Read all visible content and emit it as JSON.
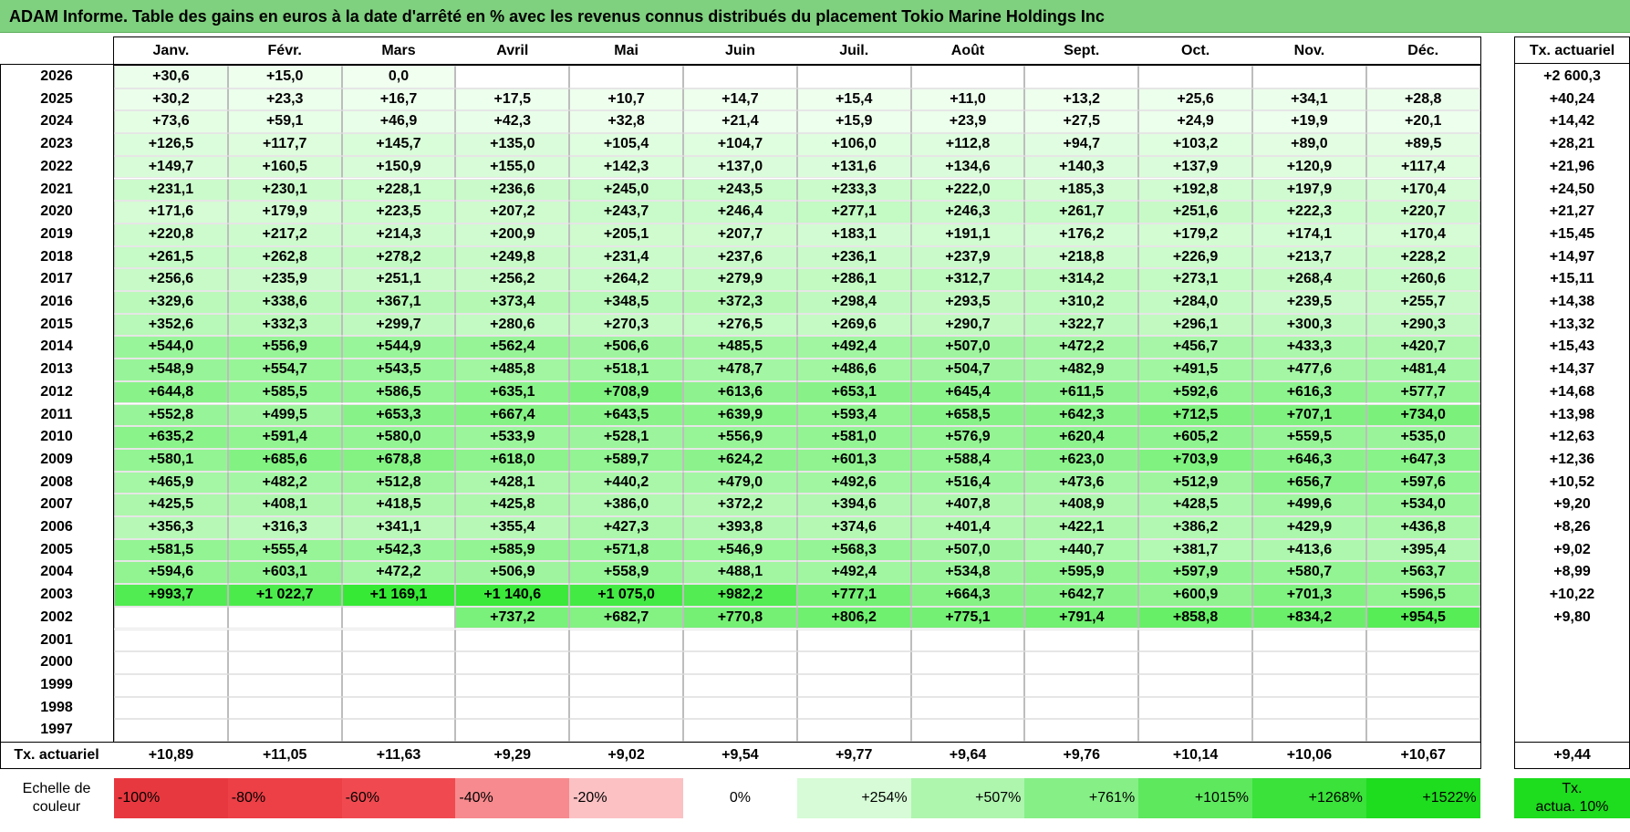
{
  "title": "ADAM Informe. Table des gains en euros à la date d'arrêté en % avec les revenus connus distribués du placement Tokio Marine Holdings Inc",
  "months": [
    "Janv.",
    "Févr.",
    "Mars",
    "Avril",
    "Mai",
    "Juin",
    "Juil.",
    "Août",
    "Sept.",
    "Oct.",
    "Nov.",
    "Déc."
  ],
  "tx_header": "Tx. actuariel",
  "rows": [
    {
      "year": "2026",
      "values": [
        "+30,6",
        "+15,0",
        "0,0",
        "",
        "",
        "",
        "",
        "",
        "",
        "",
        "",
        ""
      ],
      "tx": "+2 600,3"
    },
    {
      "year": "2025",
      "values": [
        "+30,2",
        "+23,3",
        "+16,7",
        "+17,5",
        "+10,7",
        "+14,7",
        "+15,4",
        "+11,0",
        "+13,2",
        "+25,6",
        "+34,1",
        "+28,8"
      ],
      "tx": "+40,24"
    },
    {
      "year": "2024",
      "values": [
        "+73,6",
        "+59,1",
        "+46,9",
        "+42,3",
        "+32,8",
        "+21,4",
        "+15,9",
        "+23,9",
        "+27,5",
        "+24,9",
        "+19,9",
        "+20,1"
      ],
      "tx": "+14,42"
    },
    {
      "year": "2023",
      "values": [
        "+126,5",
        "+117,7",
        "+145,7",
        "+135,0",
        "+105,4",
        "+104,7",
        "+106,0",
        "+112,8",
        "+94,7",
        "+103,2",
        "+89,0",
        "+89,5"
      ],
      "tx": "+28,21"
    },
    {
      "year": "2022",
      "values": [
        "+149,7",
        "+160,5",
        "+150,9",
        "+155,0",
        "+142,3",
        "+137,0",
        "+131,6",
        "+134,6",
        "+140,3",
        "+137,9",
        "+120,9",
        "+117,4"
      ],
      "tx": "+21,96"
    },
    {
      "year": "2021",
      "values": [
        "+231,1",
        "+230,1",
        "+228,1",
        "+236,6",
        "+245,0",
        "+243,5",
        "+233,3",
        "+222,0",
        "+185,3",
        "+192,8",
        "+197,9",
        "+170,4"
      ],
      "tx": "+24,50"
    },
    {
      "year": "2020",
      "values": [
        "+171,6",
        "+179,9",
        "+223,5",
        "+207,2",
        "+243,7",
        "+246,4",
        "+277,1",
        "+246,3",
        "+261,7",
        "+251,6",
        "+222,3",
        "+220,7"
      ],
      "tx": "+21,27"
    },
    {
      "year": "2019",
      "values": [
        "+220,8",
        "+217,2",
        "+214,3",
        "+200,9",
        "+205,1",
        "+207,7",
        "+183,1",
        "+191,1",
        "+176,2",
        "+179,2",
        "+174,1",
        "+170,4"
      ],
      "tx": "+15,45"
    },
    {
      "year": "2018",
      "values": [
        "+261,5",
        "+262,8",
        "+278,2",
        "+249,8",
        "+231,4",
        "+237,6",
        "+236,1",
        "+237,9",
        "+218,8",
        "+226,9",
        "+213,7",
        "+228,2"
      ],
      "tx": "+14,97"
    },
    {
      "year": "2017",
      "values": [
        "+256,6",
        "+235,9",
        "+251,1",
        "+256,2",
        "+264,2",
        "+279,9",
        "+286,1",
        "+312,7",
        "+314,2",
        "+273,1",
        "+268,4",
        "+260,6"
      ],
      "tx": "+15,11"
    },
    {
      "year": "2016",
      "values": [
        "+329,6",
        "+338,6",
        "+367,1",
        "+373,4",
        "+348,5",
        "+372,3",
        "+298,4",
        "+293,5",
        "+310,2",
        "+284,0",
        "+239,5",
        "+255,7"
      ],
      "tx": "+14,38"
    },
    {
      "year": "2015",
      "values": [
        "+352,6",
        "+332,3",
        "+299,7",
        "+280,6",
        "+270,3",
        "+276,5",
        "+269,6",
        "+290,7",
        "+322,7",
        "+296,1",
        "+300,3",
        "+290,3"
      ],
      "tx": "+13,32"
    },
    {
      "year": "2014",
      "values": [
        "+544,0",
        "+556,9",
        "+544,9",
        "+562,4",
        "+506,6",
        "+485,5",
        "+492,4",
        "+507,0",
        "+472,2",
        "+456,7",
        "+433,3",
        "+420,7"
      ],
      "tx": "+15,43"
    },
    {
      "year": "2013",
      "values": [
        "+548,9",
        "+554,7",
        "+543,5",
        "+485,8",
        "+518,1",
        "+478,7",
        "+486,6",
        "+504,7",
        "+482,9",
        "+491,5",
        "+477,6",
        "+481,4"
      ],
      "tx": "+14,37"
    },
    {
      "year": "2012",
      "values": [
        "+644,8",
        "+585,5",
        "+586,5",
        "+635,1",
        "+708,9",
        "+613,6",
        "+653,1",
        "+645,4",
        "+611,5",
        "+592,6",
        "+616,3",
        "+577,7"
      ],
      "tx": "+14,68"
    },
    {
      "year": "2011",
      "values": [
        "+552,8",
        "+499,5",
        "+653,3",
        "+667,4",
        "+643,5",
        "+639,9",
        "+593,4",
        "+658,5",
        "+642,3",
        "+712,5",
        "+707,1",
        "+734,0"
      ],
      "tx": "+13,98"
    },
    {
      "year": "2010",
      "values": [
        "+635,2",
        "+591,4",
        "+580,0",
        "+533,9",
        "+528,1",
        "+556,9",
        "+581,0",
        "+576,9",
        "+620,4",
        "+605,2",
        "+559,5",
        "+535,0"
      ],
      "tx": "+12,63"
    },
    {
      "year": "2009",
      "values": [
        "+580,1",
        "+685,6",
        "+678,8",
        "+618,0",
        "+589,7",
        "+624,2",
        "+601,3",
        "+588,4",
        "+623,0",
        "+703,9",
        "+646,3",
        "+647,3"
      ],
      "tx": "+12,36"
    },
    {
      "year": "2008",
      "values": [
        "+465,9",
        "+482,2",
        "+512,8",
        "+428,1",
        "+440,2",
        "+479,0",
        "+492,6",
        "+516,4",
        "+473,6",
        "+512,9",
        "+656,7",
        "+597,6"
      ],
      "tx": "+10,52"
    },
    {
      "year": "2007",
      "values": [
        "+425,5",
        "+408,1",
        "+418,5",
        "+425,8",
        "+386,0",
        "+372,2",
        "+394,6",
        "+407,8",
        "+408,9",
        "+428,5",
        "+499,6",
        "+534,0"
      ],
      "tx": "+9,20"
    },
    {
      "year": "2006",
      "values": [
        "+356,3",
        "+316,3",
        "+341,1",
        "+355,4",
        "+427,3",
        "+393,8",
        "+374,6",
        "+401,4",
        "+422,1",
        "+386,2",
        "+429,9",
        "+436,8"
      ],
      "tx": "+8,26"
    },
    {
      "year": "2005",
      "values": [
        "+581,5",
        "+555,4",
        "+542,3",
        "+585,9",
        "+571,8",
        "+546,9",
        "+568,3",
        "+507,0",
        "+440,7",
        "+381,7",
        "+413,6",
        "+395,4"
      ],
      "tx": "+9,02"
    },
    {
      "year": "2004",
      "values": [
        "+594,6",
        "+603,1",
        "+472,2",
        "+506,9",
        "+558,9",
        "+488,1",
        "+492,4",
        "+534,8",
        "+595,9",
        "+597,9",
        "+580,7",
        "+563,7"
      ],
      "tx": "+8,99"
    },
    {
      "year": "2003",
      "values": [
        "+993,7",
        "+1 022,7",
        "+1 169,1",
        "+1 140,6",
        "+1 075,0",
        "+982,2",
        "+777,1",
        "+664,3",
        "+642,7",
        "+600,9",
        "+701,3",
        "+596,5"
      ],
      "tx": "+10,22"
    },
    {
      "year": "2002",
      "values": [
        "",
        "",
        "",
        "+737,2",
        "+682,7",
        "+770,8",
        "+806,2",
        "+775,1",
        "+791,4",
        "+858,8",
        "+834,2",
        "+954,5"
      ],
      "tx": "+9,80"
    },
    {
      "year": "2001",
      "values": [
        "",
        "",
        "",
        "",
        "",
        "",
        "",
        "",
        "",
        "",
        "",
        ""
      ],
      "tx": ""
    },
    {
      "year": "2000",
      "values": [
        "",
        "",
        "",
        "",
        "",
        "",
        "",
        "",
        "",
        "",
        "",
        ""
      ],
      "tx": ""
    },
    {
      "year": "1999",
      "values": [
        "",
        "",
        "",
        "",
        "",
        "",
        "",
        "",
        "",
        "",
        "",
        ""
      ],
      "tx": ""
    },
    {
      "year": "1998",
      "values": [
        "",
        "",
        "",
        "",
        "",
        "",
        "",
        "",
        "",
        "",
        "",
        ""
      ],
      "tx": ""
    },
    {
      "year": "1997",
      "values": [
        "",
        "",
        "",
        "",
        "",
        "",
        "",
        "",
        "",
        "",
        "",
        ""
      ],
      "tx": ""
    }
  ],
  "footer": {
    "label": "Tx. actuariel",
    "values": [
      "+10,89",
      "+11,05",
      "+11,63",
      "+9,29",
      "+9,02",
      "+9,54",
      "+9,77",
      "+9,64",
      "+9,76",
      "+10,14",
      "+10,06",
      "+10,67"
    ],
    "tx": "+9,44"
  },
  "scale": {
    "label_line1": "Echelle de",
    "label_line2": "couleur",
    "items": [
      {
        "text": "-100%",
        "color": "#e8383f",
        "align": "left"
      },
      {
        "text": "-80%",
        "color": "#ec3f46",
        "align": "left"
      },
      {
        "text": "-60%",
        "color": "#f04a50",
        "align": "left"
      },
      {
        "text": "-40%",
        "color": "#f78a8e",
        "align": "left"
      },
      {
        "text": "-20%",
        "color": "#fbc1c3",
        "align": "left"
      },
      {
        "text": "0%",
        "color": "#ffffff",
        "align": "center"
      },
      {
        "text": "+254%",
        "color": "#d6fbd6",
        "align": "right"
      },
      {
        "text": "+507%",
        "color": "#aef5ae",
        "align": "right"
      },
      {
        "text": "+761%",
        "color": "#86ef86",
        "align": "right"
      },
      {
        "text": "+1015%",
        "color": "#5ee85e",
        "align": "right"
      },
      {
        "text": "+1268%",
        "color": "#3ae23a",
        "align": "right"
      },
      {
        "text": "+1522%",
        "color": "#1edc1e",
        "align": "right"
      }
    ],
    "tx_line1": "Tx.",
    "tx_line2": "actua. 10%",
    "tx_color": "#1edc1e"
  },
  "colors": {
    "title_bg": "#7fd07f",
    "scale_max": "#1edc1e"
  }
}
